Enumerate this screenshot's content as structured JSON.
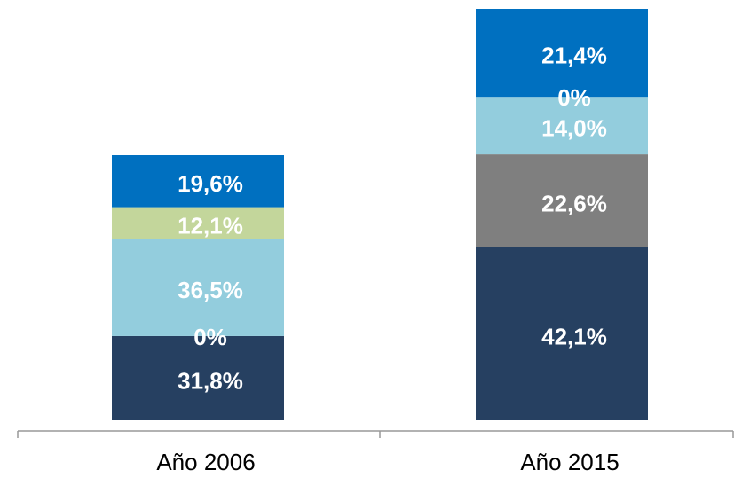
{
  "chart_data": {
    "type": "stacked-bar",
    "categories": [
      "Año 2006",
      "Año 2015"
    ],
    "series": [
      {
        "color": "#264061",
        "values": [
          31.8,
          42.1
        ],
        "value_labels": [
          "31,8%",
          "42,1%"
        ]
      },
      {
        "color": "#7f7f7f",
        "values": [
          0,
          22.6
        ],
        "value_labels": [
          "0%",
          "22,6%"
        ]
      },
      {
        "color": "#93cddd",
        "values": [
          36.5,
          14.0
        ],
        "value_labels": [
          "36,5%",
          "14,0%"
        ]
      },
      {
        "color": "#c3d69b",
        "values": [
          12.1,
          0
        ],
        "value_labels": [
          "12,1%",
          "0%"
        ]
      },
      {
        "color": "#0070c0",
        "values": [
          19.6,
          21.4
        ],
        "value_labels": [
          "19,6%",
          "21,4%"
        ]
      }
    ]
  }
}
